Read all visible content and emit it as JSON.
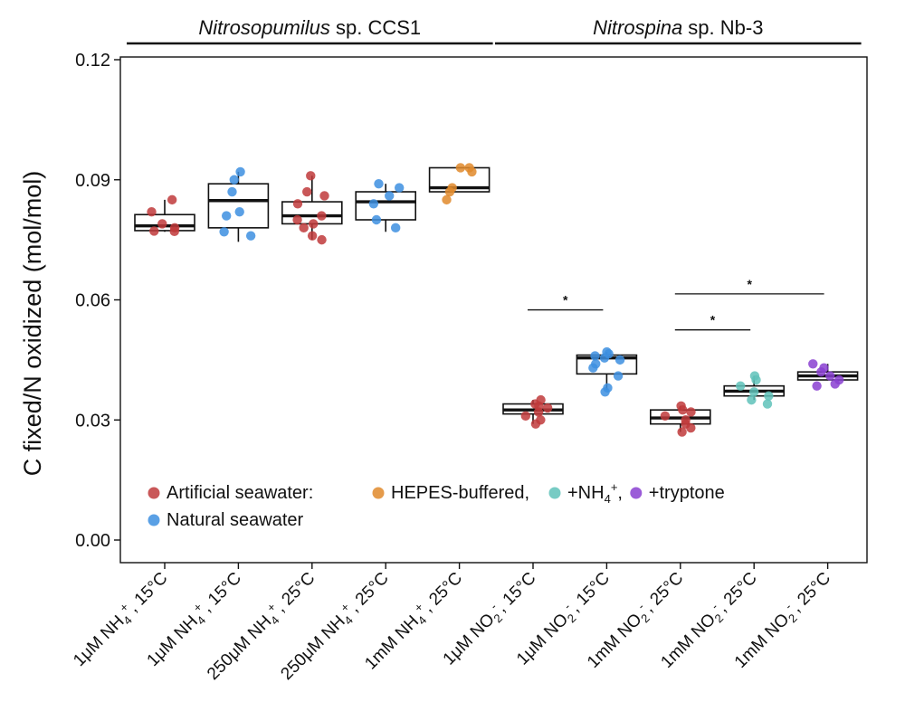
{
  "chart_data": {
    "type": "box",
    "ylabel": "C fixed/N oxidized (mol/mol)",
    "ylim": [
      0,
      0.12
    ],
    "yticks": [
      0.0,
      0.03,
      0.06,
      0.09,
      0.12
    ],
    "ytick_labels": [
      "0.00",
      "0.03",
      "0.06",
      "0.09",
      "0.12"
    ],
    "headers": [
      {
        "italic": "Nitrosopumilus",
        "rest": " sp. CCS1",
        "categories": [
          0,
          4
        ]
      },
      {
        "italic": "Nitrospina",
        "rest": " sp. Nb-3",
        "categories": [
          5,
          9
        ]
      }
    ],
    "categories": [
      {
        "base": "1μM NH",
        "sub": "4",
        "sup": "+",
        "tail": ", 15°C"
      },
      {
        "base": "1μM NH",
        "sub": "4",
        "sup": "+",
        "tail": ", 15°C"
      },
      {
        "base": "250μM NH",
        "sub": "4",
        "sup": "+",
        "tail": ", 25°C"
      },
      {
        "base": "250μM NH",
        "sub": "4",
        "sup": "+",
        "tail": ", 25°C"
      },
      {
        "base": "1mM NH",
        "sub": "4",
        "sup": "+",
        "tail": ", 25°C"
      },
      {
        "base": "1μM NO",
        "sub": "2",
        "sup": "-",
        "tail": ", 15°C"
      },
      {
        "base": "1μM NO",
        "sub": "2",
        "sup": "-",
        "tail": ", 15°C"
      },
      {
        "base": "1mM NO",
        "sub": "2",
        "sup": "-",
        "tail": ", 25°C"
      },
      {
        "base": "1mM NO",
        "sub": "2",
        "sup": "-",
        "tail": ", 25°C"
      },
      {
        "base": "1mM NO",
        "sub": "2",
        "sup": "-",
        "tail": ", 25°C"
      }
    ],
    "series": [
      {
        "category": 0,
        "medium": "artificial",
        "color": "#c0393b",
        "box": {
          "whislo": 0.077,
          "q1": 0.0773,
          "med": 0.0785,
          "q3": 0.0813,
          "whishi": 0.085
        },
        "points": [
          0.085,
          0.082,
          0.079,
          0.078,
          0.0772,
          0.0771
        ]
      },
      {
        "category": 1,
        "medium": "natural",
        "color": "#3d8fe0",
        "box": {
          "whislo": 0.0745,
          "q1": 0.078,
          "med": 0.0848,
          "q3": 0.089,
          "whishi": 0.092
        },
        "points": [
          0.092,
          0.09,
          0.087,
          0.082,
          0.081,
          0.077,
          0.076
        ]
      },
      {
        "category": 2,
        "medium": "artificial",
        "color": "#c0393b",
        "box": {
          "whislo": 0.075,
          "q1": 0.079,
          "med": 0.081,
          "q3": 0.0845,
          "whishi": 0.091
        },
        "points": [
          0.091,
          0.087,
          0.086,
          0.084,
          0.081,
          0.08,
          0.079,
          0.078,
          0.076,
          0.075
        ]
      },
      {
        "category": 3,
        "medium": "natural",
        "color": "#3d8fe0",
        "box": {
          "whislo": 0.077,
          "q1": 0.08,
          "med": 0.0845,
          "q3": 0.087,
          "whishi": 0.089
        },
        "points": [
          0.089,
          0.088,
          0.086,
          0.084,
          0.08,
          0.078
        ]
      },
      {
        "category": 4,
        "medium": "hepes",
        "color": "#e08a2b",
        "box": {
          "whislo": 0.087,
          "q1": 0.087,
          "med": 0.088,
          "q3": 0.093,
          "whishi": 0.093
        },
        "points": [
          0.093,
          0.093,
          0.092,
          0.088,
          0.087,
          0.085
        ]
      },
      {
        "category": 5,
        "medium": "artificial",
        "color": "#c0393b",
        "box": {
          "whislo": 0.029,
          "q1": 0.0315,
          "med": 0.0325,
          "q3": 0.034,
          "whishi": 0.035
        },
        "points": [
          0.035,
          0.034,
          0.0335,
          0.033,
          0.032,
          0.031,
          0.03,
          0.029
        ]
      },
      {
        "category": 6,
        "medium": "natural",
        "color": "#3d8fe0",
        "box": {
          "whislo": 0.0375,
          "q1": 0.0415,
          "med": 0.0455,
          "q3": 0.0462,
          "whishi": 0.047
        },
        "points": [
          0.047,
          0.0465,
          0.046,
          0.0455,
          0.045,
          0.044,
          0.043,
          0.041,
          0.038,
          0.037
        ]
      },
      {
        "category": 7,
        "medium": "artificial",
        "color": "#c0393b",
        "box": {
          "whislo": 0.027,
          "q1": 0.029,
          "med": 0.0305,
          "q3": 0.0325,
          "whishi": 0.0335
        },
        "points": [
          0.0335,
          0.0325,
          0.032,
          0.031,
          0.03,
          0.029,
          0.028,
          0.027
        ]
      },
      {
        "category": 8,
        "medium": "nh4",
        "color": "#5fc2ba",
        "box": {
          "whislo": 0.035,
          "q1": 0.036,
          "med": 0.0372,
          "q3": 0.0385,
          "whishi": 0.041
        },
        "points": [
          0.041,
          0.04,
          0.0385,
          0.037,
          0.036,
          0.035,
          0.034
        ]
      },
      {
        "category": 9,
        "medium": "tryptone",
        "color": "#8a3fd1",
        "box": {
          "whislo": 0.04,
          "q1": 0.04,
          "med": 0.041,
          "q3": 0.042,
          "whishi": 0.044
        },
        "points": [
          0.044,
          0.043,
          0.042,
          0.041,
          0.04,
          0.039,
          0.0385
        ]
      }
    ],
    "significance": [
      {
        "from": 5,
        "to": 6,
        "y": 0.0575,
        "label": "*"
      },
      {
        "from": 7,
        "to": 9,
        "y": 0.0615,
        "label": "*"
      },
      {
        "from": 7,
        "to": 8,
        "y": 0.0525,
        "label": "*"
      }
    ],
    "legend": {
      "position": "bottom-left",
      "rows": [
        [
          {
            "label": "Artificial seawater:",
            "color": "#c0393b"
          },
          {
            "label": "HEPES-buffered,",
            "color": "#e08a2b"
          },
          {
            "label": "+NH",
            "sub": "4",
            "sup": "+",
            "tail": ",",
            "color": "#5fc2ba"
          },
          {
            "label": "+tryptone",
            "color": "#8a3fd1"
          }
        ],
        [
          {
            "label": "Natural seawater",
            "color": "#3d8fe0"
          }
        ]
      ]
    }
  }
}
